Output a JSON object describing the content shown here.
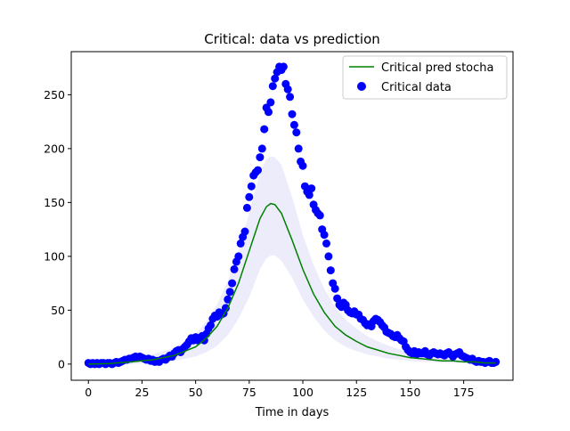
{
  "chart_data": {
    "type": "scatter",
    "title": "Critical: data vs prediction",
    "xlabel": "Time in days",
    "ylabel": "",
    "xlim": [
      -8,
      198
    ],
    "ylim": [
      -15,
      290
    ],
    "xticks": [
      0,
      25,
      50,
      75,
      100,
      125,
      150,
      175
    ],
    "yticks": [
      0,
      50,
      100,
      150,
      200,
      250
    ],
    "legend_position": "top-right",
    "grid": false,
    "series": [
      {
        "name": "Critical pred stocha",
        "kind": "line",
        "color": "#008000",
        "x": [
          0,
          10,
          20,
          30,
          40,
          50,
          55,
          60,
          65,
          70,
          75,
          80,
          83,
          85,
          87,
          90,
          95,
          100,
          105,
          110,
          115,
          120,
          125,
          130,
          135,
          140,
          145,
          150,
          155,
          160,
          165,
          170,
          175,
          180,
          185,
          190
        ],
        "y": [
          0,
          0.5,
          2,
          4,
          8,
          16,
          24,
          35,
          52,
          75,
          105,
          135,
          146,
          149,
          148,
          140,
          115,
          88,
          65,
          48,
          35,
          27,
          21,
          16,
          13,
          10,
          8,
          6,
          5,
          4,
          3,
          3,
          2,
          2,
          1,
          1
        ]
      },
      {
        "name": "Critical pred stocha band",
        "kind": "band",
        "color": "#e6e6fa",
        "x": [
          0,
          10,
          20,
          30,
          40,
          50,
          55,
          60,
          65,
          70,
          75,
          80,
          83,
          85,
          87,
          90,
          95,
          100,
          105,
          110,
          115,
          120,
          125,
          130,
          135,
          140,
          145,
          150,
          155,
          160,
          165,
          170,
          175,
          180,
          185,
          190
        ],
        "lower": [
          0,
          0,
          0,
          1,
          3,
          7,
          11,
          17,
          27,
          42,
          62,
          88,
          98,
          101,
          101,
          96,
          80,
          60,
          44,
          31,
          22,
          16,
          12,
          9,
          7,
          5,
          4,
          3,
          2,
          2,
          1,
          1,
          1,
          1,
          0,
          0
        ],
        "upper": [
          1,
          2,
          5,
          9,
          15,
          28,
          40,
          55,
          77,
          105,
          140,
          178,
          190,
          193,
          192,
          185,
          155,
          120,
          92,
          70,
          53,
          41,
          33,
          26,
          21,
          17,
          14,
          11,
          9,
          7,
          6,
          5,
          4,
          3,
          3,
          2
        ]
      },
      {
        "name": "Critical data",
        "kind": "scatter",
        "color": "#0000ff",
        "x": [
          0,
          1,
          2,
          3,
          4,
          5,
          6,
          7,
          8,
          9,
          10,
          11,
          12,
          13,
          14,
          15,
          16,
          17,
          18,
          19,
          20,
          21,
          22,
          23,
          24,
          25,
          26,
          27,
          28,
          29,
          30,
          31,
          32,
          33,
          34,
          35,
          36,
          37,
          38,
          39,
          40,
          41,
          42,
          43,
          44,
          45,
          46,
          47,
          48,
          49,
          50,
          51,
          52,
          53,
          54,
          55,
          56,
          57,
          58,
          59,
          60,
          61,
          62,
          63,
          64,
          65,
          66,
          67,
          68,
          69,
          70,
          71,
          72,
          73,
          74,
          75,
          76,
          77,
          78,
          79,
          80,
          81,
          82,
          83,
          84,
          85,
          86,
          87,
          88,
          89,
          90,
          91,
          92,
          93,
          94,
          95,
          96,
          97,
          98,
          99,
          100,
          101,
          102,
          103,
          104,
          105,
          106,
          107,
          108,
          109,
          110,
          111,
          112,
          113,
          114,
          115,
          116,
          117,
          118,
          119,
          120,
          121,
          122,
          123,
          124,
          125,
          126,
          127,
          128,
          129,
          130,
          131,
          132,
          133,
          134,
          135,
          136,
          137,
          138,
          139,
          140,
          141,
          142,
          143,
          144,
          145,
          146,
          147,
          148,
          149,
          150,
          151,
          152,
          153,
          154,
          155,
          156,
          157,
          158,
          159,
          160,
          161,
          162,
          163,
          164,
          165,
          166,
          167,
          168,
          169,
          170,
          171,
          172,
          173,
          174,
          175,
          176,
          177,
          178,
          179,
          180,
          181,
          182,
          183,
          184,
          185,
          186,
          187,
          188,
          189,
          190
        ],
        "y": [
          1,
          0,
          1,
          0,
          1,
          0,
          1,
          1,
          0,
          1,
          1,
          0,
          1,
          2,
          1,
          2,
          3,
          4,
          4,
          5,
          5,
          6,
          7,
          6,
          7,
          6,
          5,
          4,
          5,
          3,
          4,
          2,
          3,
          2,
          4,
          5,
          4,
          6,
          8,
          7,
          10,
          12,
          13,
          11,
          14,
          16,
          18,
          21,
          24,
          22,
          25,
          22,
          24,
          26,
          22,
          28,
          33,
          36,
          42,
          45,
          44,
          48,
          46,
          47,
          52,
          60,
          67,
          75,
          88,
          95,
          100,
          112,
          118,
          123,
          145,
          155,
          165,
          175,
          178,
          180,
          192,
          200,
          218,
          238,
          234,
          243,
          258,
          265,
          271,
          276,
          273,
          276,
          260,
          255,
          248,
          232,
          222,
          215,
          200,
          188,
          184,
          165,
          160,
          157,
          163,
          148,
          143,
          140,
          138,
          125,
          120,
          112,
          100,
          87,
          75,
          70,
          61,
          55,
          53,
          57,
          55,
          50,
          48,
          47,
          49,
          46,
          46,
          42,
          41,
          38,
          36,
          37,
          35,
          40,
          42,
          41,
          39,
          36,
          34,
          30,
          29,
          28,
          26,
          25,
          27,
          24,
          22,
          21,
          16,
          13,
          11,
          10,
          12,
          9,
          11,
          10,
          10,
          12,
          9,
          8,
          10,
          11,
          10,
          9,
          10,
          9,
          8,
          10,
          11,
          9,
          7,
          9,
          10,
          11,
          8,
          7,
          6,
          5,
          4,
          5,
          3,
          2,
          3,
          2,
          2,
          1,
          2,
          3,
          1,
          1,
          2
        ]
      }
    ]
  }
}
